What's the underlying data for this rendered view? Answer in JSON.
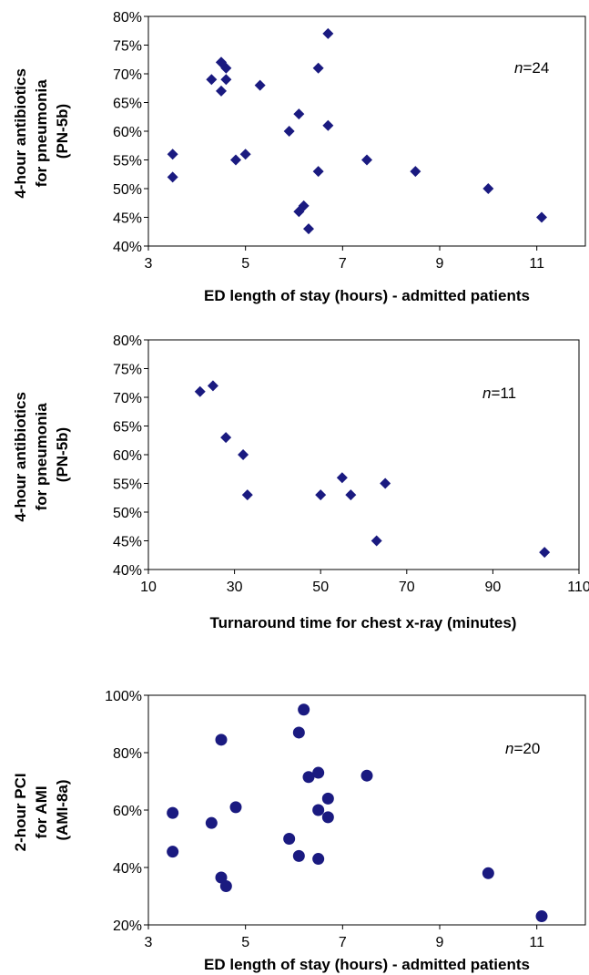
{
  "chart_data": [
    {
      "type": "scatter",
      "marker": "diamond",
      "color": "#1a1a80",
      "title": "",
      "xlabel": "ED  length of stay (hours) - admitted patients",
      "ylabel_lines": [
        "4-hour antibiotics",
        "for pneumonia",
        "(PN-5b)"
      ],
      "annotation_n": "24",
      "xlim": [
        3,
        12
      ],
      "ylim": [
        40,
        80
      ],
      "xticks": [
        3,
        5,
        7,
        9,
        11
      ],
      "yticks": [
        40,
        45,
        50,
        55,
        60,
        65,
        70,
        75,
        80
      ],
      "ytick_labels": [
        "40%",
        "45%",
        "50%",
        "55%",
        "60%",
        "65%",
        "70%",
        "75%",
        "80%"
      ],
      "grid": false,
      "points": [
        [
          3.5,
          56
        ],
        [
          3.5,
          52
        ],
        [
          4.3,
          69
        ],
        [
          4.5,
          72
        ],
        [
          4.5,
          67
        ],
        [
          4.6,
          71
        ],
        [
          4.6,
          69
        ],
        [
          4.8,
          55
        ],
        [
          5.0,
          56
        ],
        [
          5.3,
          68
        ],
        [
          5.9,
          60
        ],
        [
          6.1,
          63
        ],
        [
          6.1,
          46
        ],
        [
          6.2,
          47
        ],
        [
          6.3,
          43
        ],
        [
          6.5,
          71
        ],
        [
          6.5,
          53
        ],
        [
          6.7,
          77
        ],
        [
          6.7,
          61
        ],
        [
          7.5,
          55
        ],
        [
          8.5,
          53
        ],
        [
          10.0,
          50
        ],
        [
          11.1,
          45
        ],
        [
          4.5,
          72
        ]
      ]
    },
    {
      "type": "scatter",
      "marker": "diamond",
      "color": "#1a1a80",
      "title": "",
      "xlabel": "Turnaround time for chest x-ray (minutes)",
      "ylabel_lines": [
        "4-hour antibiotics",
        "for pneumonia",
        "(PN-5b)"
      ],
      "annotation_n": "11",
      "xlim": [
        10,
        110
      ],
      "ylim": [
        40,
        80
      ],
      "xticks": [
        10,
        30,
        50,
        70,
        90,
        110
      ],
      "yticks": [
        40,
        45,
        50,
        55,
        60,
        65,
        70,
        75,
        80
      ],
      "ytick_labels": [
        "40%",
        "45%",
        "50%",
        "55%",
        "60%",
        "65%",
        "70%",
        "75%",
        "80%"
      ],
      "grid": false,
      "points": [
        [
          22,
          71
        ],
        [
          25,
          72
        ],
        [
          28,
          63
        ],
        [
          32,
          60
        ],
        [
          33,
          53
        ],
        [
          50,
          53
        ],
        [
          55,
          56
        ],
        [
          57,
          53
        ],
        [
          63,
          45
        ],
        [
          65,
          55
        ],
        [
          102,
          43
        ]
      ]
    },
    {
      "type": "scatter",
      "marker": "circle",
      "color": "#1a1a80",
      "title": "",
      "xlabel": "ED length of stay (hours) - admitted patients",
      "ylabel_lines": [
        "2-hour PCI",
        "for AMI",
        "(AMI-8a)"
      ],
      "annotation_n": "20",
      "xlim": [
        3,
        12
      ],
      "ylim": [
        20,
        100
      ],
      "xticks": [
        3,
        5,
        7,
        9,
        11
      ],
      "yticks": [
        20,
        40,
        60,
        80,
        100
      ],
      "ytick_labels": [
        "20%",
        "40%",
        "60%",
        "80%",
        "100%"
      ],
      "grid": false,
      "points": [
        [
          3.5,
          59
        ],
        [
          3.5,
          45.5
        ],
        [
          4.3,
          55.5
        ],
        [
          4.5,
          84.5
        ],
        [
          4.5,
          36.5
        ],
        [
          4.6,
          33.5
        ],
        [
          4.8,
          61
        ],
        [
          5.9,
          50
        ],
        [
          6.1,
          87
        ],
        [
          6.1,
          44
        ],
        [
          6.2,
          95
        ],
        [
          6.3,
          71.5
        ],
        [
          6.5,
          73
        ],
        [
          6.5,
          60
        ],
        [
          6.5,
          43
        ],
        [
          6.7,
          64
        ],
        [
          6.7,
          57.5
        ],
        [
          7.5,
          72
        ],
        [
          10.0,
          38
        ],
        [
          11.1,
          23
        ]
      ]
    }
  ],
  "n_prefix": "n",
  "n_eq": "="
}
